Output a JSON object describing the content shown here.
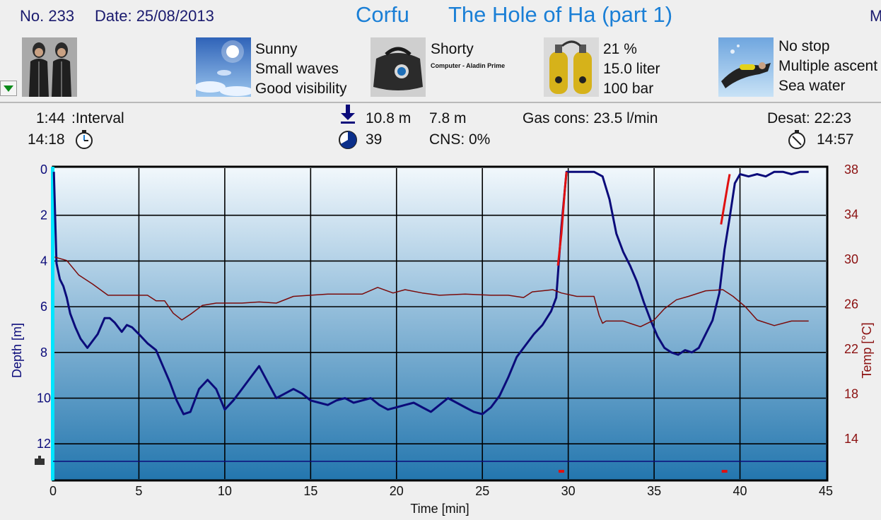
{
  "header": {
    "number": "No. 233",
    "date": "Date: 25/08/2013",
    "location": "Corfu",
    "site": "The Hole of Ha (part 1)",
    "right_clip": "M"
  },
  "conditions": {
    "weather": [
      "Sunny",
      "Small waves",
      "Good visibility"
    ],
    "suit": "Shorty",
    "computer": "Computer - Aladin Prime",
    "gas": [
      "21 %",
      "15.0 liter",
      "100 bar"
    ],
    "dive": [
      "No stop",
      "Multiple ascent",
      "Sea water"
    ]
  },
  "stats": {
    "interval_value": "1:44",
    "interval_label": ":Interval",
    "entry_time": "14:18",
    "max_depth": "10.8 m",
    "avg_depth": "7.8 m",
    "duration": "39",
    "cns": "CNS:  0%",
    "gas_cons": "Gas cons: 23.5 l/min",
    "desat": "Desat:  22:23",
    "exit_time": "14:57"
  },
  "colors": {
    "depth_line": "#0b0b7a",
    "temp_line": "#7a0b0b",
    "ascent_warning": "#e01010",
    "title": "#1a7fd6",
    "surface_marker": "#00e5ff"
  },
  "chart_data": {
    "type": "line",
    "xlabel": "Time [min]",
    "ylabel": "Depth [m]",
    "y2label": "Temp [°C]",
    "xlim": [
      0,
      45
    ],
    "ylim": [
      0,
      13.6
    ],
    "y2lim": [
      10.3,
      38
    ],
    "x_ticks": [
      "0",
      "5",
      "10",
      "15",
      "20",
      "25",
      "30",
      "35",
      "40",
      "45"
    ],
    "y_ticks": [
      "0",
      "2",
      "4",
      "6",
      "8",
      "10",
      "12"
    ],
    "y2_ticks": [
      "38",
      "34",
      "30",
      "26",
      "22",
      "18",
      "14"
    ],
    "grid": true,
    "series": [
      {
        "axis": "depth",
        "x": [
          0.05,
          0.2,
          0.4,
          0.6,
          0.8,
          1.0,
          1.3,
          1.6,
          2.0,
          2.3,
          2.6,
          3.0,
          3.3,
          3.6,
          4.0,
          4.3,
          4.6,
          5.0,
          5.5,
          6.0,
          6.4,
          6.8,
          7.2,
          7.6,
          8.0,
          8.5,
          9.0,
          9.5,
          10.0,
          10.5,
          11.0,
          11.5,
          12.0,
          12.5,
          13.0,
          13.5,
          14.0,
          14.5,
          15.0,
          15.5,
          16.0,
          16.5,
          17.0,
          17.5,
          18.0,
          18.5,
          19.0,
          19.5,
          20.0,
          20.5,
          21.0,
          21.5,
          22.0,
          22.5,
          23.0,
          23.5,
          24.0,
          24.5,
          25.0,
          25.5,
          26.0,
          26.5,
          27.0,
          27.5,
          28.0,
          28.5,
          29.0,
          29.3,
          29.6,
          29.9,
          30.2,
          30.6,
          31.0,
          31.5,
          32.0,
          32.4,
          32.8,
          33.2,
          33.6,
          34.0,
          34.4,
          34.8,
          35.2,
          35.6,
          36.0,
          36.4,
          36.8,
          37.2,
          37.6,
          38.0,
          38.4,
          38.8,
          39.1,
          39.4,
          39.7,
          40.0,
          40.5,
          41.0,
          41.5,
          42.0,
          42.5,
          43.0,
          43.5,
          44.0
        ],
        "values": [
          0.1,
          4.1,
          4.8,
          5.1,
          5.6,
          6.3,
          6.9,
          7.4,
          7.8,
          7.5,
          7.2,
          6.5,
          6.5,
          6.7,
          7.1,
          6.8,
          6.9,
          7.2,
          7.6,
          7.9,
          8.6,
          9.3,
          10.1,
          10.7,
          10.6,
          9.6,
          9.2,
          9.6,
          10.5,
          10.1,
          9.6,
          9.1,
          8.6,
          9.3,
          10.0,
          9.8,
          9.6,
          9.8,
          10.1,
          10.2,
          10.3,
          10.1,
          10.0,
          10.2,
          10.1,
          10.0,
          10.3,
          10.5,
          10.4,
          10.3,
          10.2,
          10.4,
          10.6,
          10.3,
          10.0,
          10.2,
          10.4,
          10.6,
          10.7,
          10.4,
          9.9,
          9.1,
          8.2,
          7.7,
          7.2,
          6.8,
          6.2,
          5.6,
          2.5,
          0.1,
          0.1,
          0.1,
          0.1,
          0.1,
          0.3,
          1.3,
          2.8,
          3.6,
          4.2,
          4.9,
          5.8,
          6.6,
          7.3,
          7.8,
          8.0,
          8.1,
          7.9,
          8.0,
          7.8,
          7.2,
          6.6,
          5.4,
          3.5,
          2.1,
          0.6,
          0.2,
          0.3,
          0.2,
          0.3,
          0.1,
          0.1,
          0.2,
          0.1,
          0.1
        ]
      },
      {
        "axis": "temp",
        "x": [
          0.1,
          0.8,
          1.5,
          2.3,
          3.2,
          4.3,
          5.5,
          6.0,
          6.5,
          7.0,
          7.5,
          8.0,
          8.7,
          9.5,
          10.2,
          11.0,
          12.0,
          13.0,
          14.0,
          15.0,
          16.0,
          17.0,
          18.0,
          18.9,
          19.8,
          20.5,
          21.5,
          22.5,
          24.0,
          25.5,
          26.5,
          27.4,
          27.9,
          28.5,
          29.1,
          29.6,
          30.5,
          31.5,
          31.8,
          32.0,
          32.2,
          32.6,
          33.2,
          34.2,
          35.0,
          35.6,
          36.3,
          37.0,
          38.0,
          39.0,
          39.6,
          40.3,
          41.0,
          42.0,
          43.0,
          44.0
        ],
        "values": [
          30.2,
          29.9,
          28.6,
          27.8,
          26.8,
          26.8,
          26.8,
          26.3,
          26.3,
          25.2,
          24.6,
          25.1,
          25.9,
          26.1,
          26.1,
          26.1,
          26.2,
          26.1,
          26.7,
          26.8,
          26.9,
          26.9,
          26.9,
          27.5,
          27.0,
          27.3,
          27.0,
          26.8,
          26.9,
          26.8,
          26.8,
          26.6,
          27.1,
          27.2,
          27.3,
          27.0,
          26.7,
          26.7,
          25.0,
          24.3,
          24.5,
          24.5,
          24.5,
          24.0,
          24.6,
          25.6,
          26.4,
          26.7,
          27.2,
          27.3,
          26.7,
          25.8,
          24.6,
          24.1,
          24.5,
          24.5
        ]
      },
      {
        "name": "ascent warning 1",
        "axis": "depth",
        "x": [
          29.4,
          29.6,
          29.8,
          29.9
        ],
        "values": [
          4.2,
          2.8,
          0.9,
          0.1
        ]
      },
      {
        "name": "ascent warning 2",
        "axis": "depth",
        "x": [
          38.9,
          39.1,
          39.3,
          39.4
        ],
        "values": [
          2.4,
          1.5,
          0.6,
          0.2
        ]
      }
    ],
    "bottom_line_depth": 13.2,
    "warning_markers_x": [
      29.6,
      39.1
    ]
  }
}
